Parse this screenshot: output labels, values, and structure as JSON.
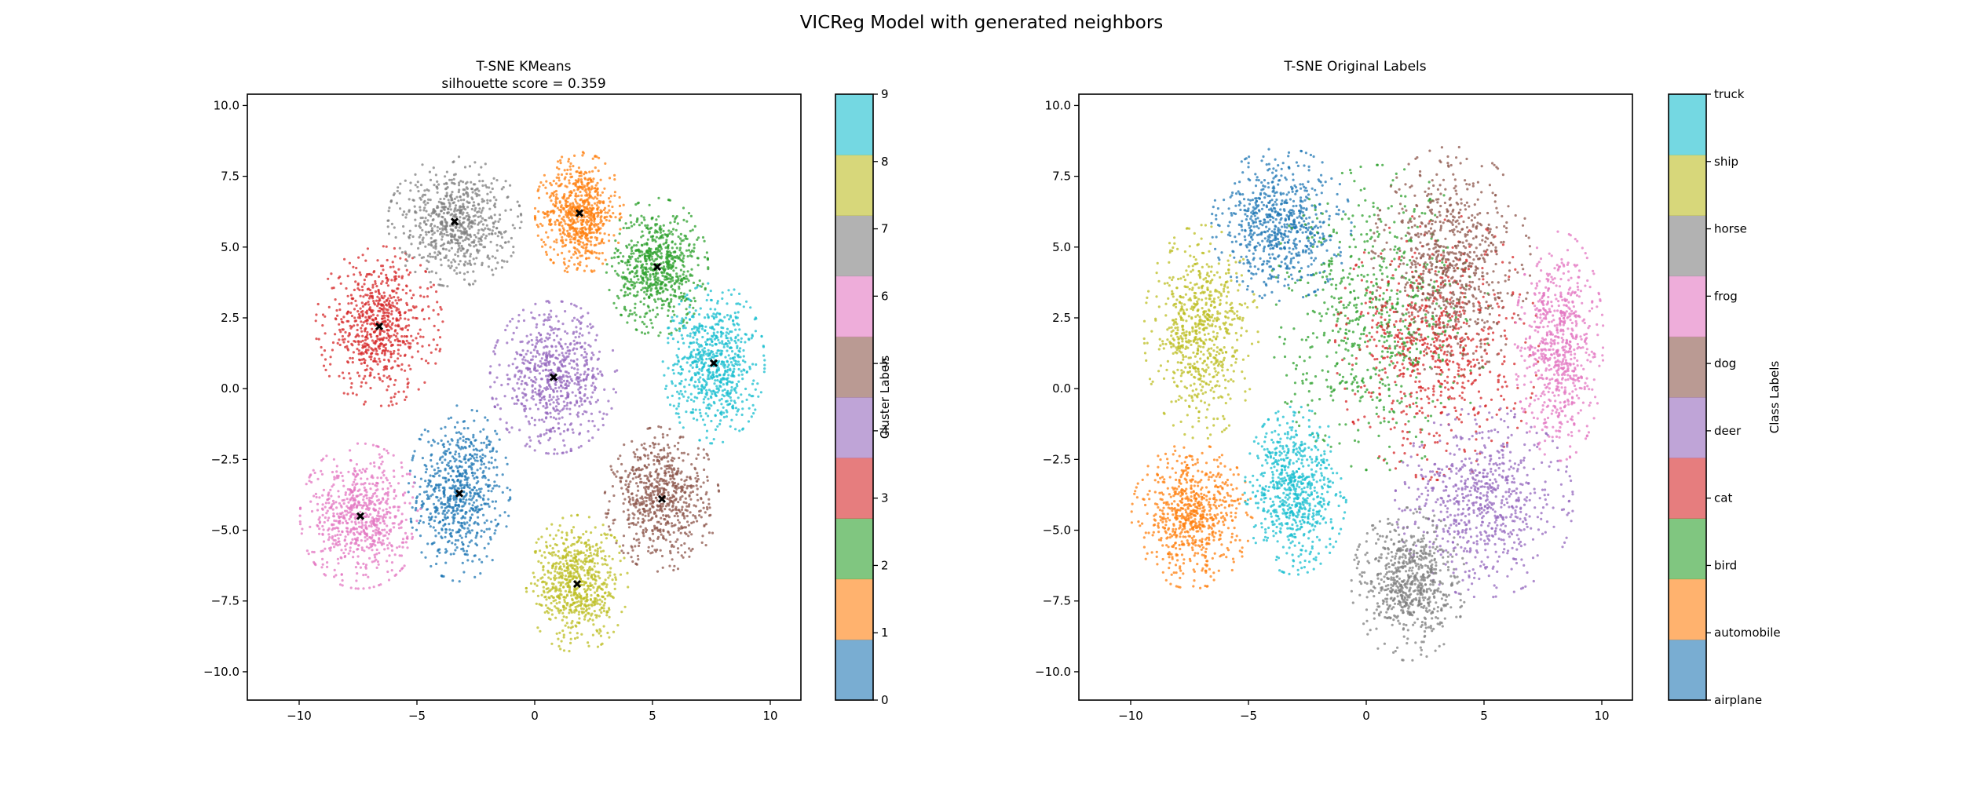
{
  "suptitle": "VICReg Model with generated neighbors",
  "chart_data": [
    {
      "type": "scatter",
      "title": "T-SNE KMeans",
      "subtitle": "silhouette score = 0.359",
      "xlabel": "",
      "ylabel": "",
      "xlim": [
        -12.2,
        11.3
      ],
      "ylim": [
        -11.0,
        10.4
      ],
      "xticks": [
        -10,
        -5,
        0,
        5,
        10
      ],
      "xtick_labels": [
        "−10",
        "−5",
        "0",
        "5",
        "10"
      ],
      "yticks": [
        -10.0,
        -7.5,
        -5.0,
        -2.5,
        0.0,
        2.5,
        5.0,
        7.5,
        10.0
      ],
      "ytick_labels": [
        "−10.0",
        "−7.5",
        "−5.0",
        "−2.5",
        "0.0",
        "2.5",
        "5.0",
        "7.5",
        "10.0"
      ],
      "grid": false,
      "colorbar": {
        "label": "Cluster Labels",
        "ticks": [
          "0",
          "1",
          "2",
          "3",
          "4",
          "5",
          "6",
          "7",
          "8",
          "9"
        ],
        "colors": [
          "#1f77b4",
          "#ff7f0e",
          "#2ca02c",
          "#d62728",
          "#9467bd",
          "#8c564b",
          "#e377c2",
          "#7f7f7f",
          "#bcbd22",
          "#17becf"
        ]
      },
      "clusters": [
        {
          "label": "0",
          "center": [
            -3.2,
            -3.7
          ],
          "spread": [
            1.6,
            2.3
          ],
          "color": "#1f77b4"
        },
        {
          "label": "1",
          "center": [
            1.9,
            6.2
          ],
          "spread": [
            1.4,
            1.6
          ],
          "color": "#ff7f0e"
        },
        {
          "label": "2",
          "center": [
            5.2,
            4.3
          ],
          "spread": [
            1.6,
            1.8
          ],
          "color": "#2ca02c"
        },
        {
          "label": "3",
          "center": [
            -6.6,
            2.2
          ],
          "spread": [
            2.0,
            2.1
          ],
          "color": "#d62728"
        },
        {
          "label": "4",
          "center": [
            0.8,
            0.4
          ],
          "spread": [
            2.0,
            2.0
          ],
          "color": "#9467bd"
        },
        {
          "label": "5",
          "center": [
            5.4,
            -3.9
          ],
          "spread": [
            1.8,
            1.9
          ],
          "color": "#8c564b"
        },
        {
          "label": "6",
          "center": [
            -7.4,
            -4.5
          ],
          "spread": [
            1.9,
            1.9
          ],
          "color": "#e377c2"
        },
        {
          "label": "7",
          "center": [
            -3.4,
            5.9
          ],
          "spread": [
            2.1,
            1.7
          ],
          "color": "#7f7f7f"
        },
        {
          "label": "8",
          "center": [
            1.8,
            -6.9
          ],
          "spread": [
            1.6,
            1.8
          ],
          "color": "#bcbd22"
        },
        {
          "label": "9",
          "center": [
            7.6,
            0.9
          ],
          "spread": [
            1.6,
            2.1
          ],
          "color": "#17becf"
        }
      ],
      "centroid_marker": "X",
      "centroid_color": "#000000"
    },
    {
      "type": "scatter",
      "title": "T-SNE Original Labels",
      "subtitle": "",
      "xlabel": "",
      "ylabel": "",
      "xlim": [
        -12.2,
        11.3
      ],
      "ylim": [
        -11.0,
        10.4
      ],
      "xticks": [
        -10,
        -5,
        0,
        5,
        10
      ],
      "xtick_labels": [
        "−10",
        "−5",
        "0",
        "5",
        "10"
      ],
      "yticks": [
        -10.0,
        -7.5,
        -5.0,
        -2.5,
        0.0,
        2.5,
        5.0,
        7.5,
        10.0
      ],
      "ytick_labels": [
        "−10.0",
        "−7.5",
        "−5.0",
        "−2.5",
        "0.0",
        "2.5",
        "5.0",
        "7.5",
        "10.0"
      ],
      "grid": false,
      "colorbar": {
        "label": "Class Labels",
        "ticks": [
          "airplane",
          "automobile",
          "bird",
          "cat",
          "deer",
          "dog",
          "frog",
          "horse",
          "ship",
          "truck"
        ],
        "colors": [
          "#1f77b4",
          "#ff7f0e",
          "#2ca02c",
          "#d62728",
          "#9467bd",
          "#8c564b",
          "#e377c2",
          "#7f7f7f",
          "#bcbd22",
          "#17becf"
        ]
      },
      "classes": [
        {
          "label": "airplane",
          "center": [
            -3.6,
            5.8
          ],
          "spread": [
            2.2,
            2.0
          ],
          "color": "#1f77b4"
        },
        {
          "label": "automobile",
          "center": [
            -7.4,
            -4.5
          ],
          "spread": [
            1.9,
            1.9
          ],
          "color": "#ff7f0e"
        },
        {
          "label": "bird",
          "center": [
            0.5,
            2.5
          ],
          "spread": [
            3.5,
            4.0
          ],
          "color": "#2ca02c"
        },
        {
          "label": "cat",
          "center": [
            3.0,
            1.5
          ],
          "spread": [
            3.2,
            3.5
          ],
          "color": "#d62728"
        },
        {
          "label": "deer",
          "center": [
            5.0,
            -4.0
          ],
          "spread": [
            2.8,
            2.5
          ],
          "color": "#9467bd"
        },
        {
          "label": "dog",
          "center": [
            3.6,
            4.5
          ],
          "spread": [
            2.5,
            3.0
          ],
          "color": "#8c564b"
        },
        {
          "label": "frog",
          "center": [
            8.2,
            1.5
          ],
          "spread": [
            1.4,
            3.0
          ],
          "color": "#e377c2"
        },
        {
          "label": "horse",
          "center": [
            1.8,
            -6.9
          ],
          "spread": [
            1.8,
            2.0
          ],
          "color": "#7f7f7f"
        },
        {
          "label": "ship",
          "center": [
            -7.0,
            2.0
          ],
          "spread": [
            1.8,
            2.8
          ],
          "color": "#bcbd22"
        },
        {
          "label": "truck",
          "center": [
            -3.0,
            -3.6
          ],
          "spread": [
            1.6,
            2.2
          ],
          "color": "#17becf"
        }
      ]
    }
  ]
}
